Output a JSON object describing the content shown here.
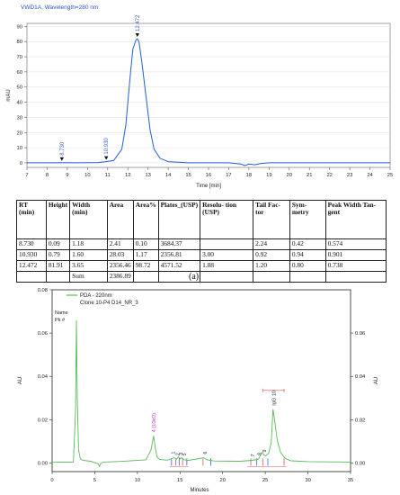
{
  "panel_a": {
    "title": "VWD1A, Wavelength=280 nm",
    "caption": "(a)",
    "table": {
      "headers": [
        "RT (min)",
        "Height",
        "Width (min)",
        "Area",
        "Area%",
        "Plates_(USP)",
        "Resolu- tion (USP)",
        "Tail Fac- tor",
        "Sym- metry",
        "Peak Width Tan- gent"
      ],
      "rows": [
        [
          "8.730",
          "0.09",
          "1.18",
          "2.41",
          "0.10",
          "3684.37",
          "",
          "2.24",
          "0.42",
          "0.574"
        ],
        [
          "10.930",
          "0.79",
          "1.60",
          "28.03",
          "1.17",
          "2356.81",
          "3.00",
          "0.92",
          "0.94",
          "0.901"
        ],
        [
          "12.472",
          "81.91",
          "3.65",
          "2356.46",
          "98.72",
          "4571.52",
          "1.88",
          "1.20",
          "0.80",
          "0.738"
        ],
        [
          "",
          "",
          "Sum",
          "2386.89",
          "",
          "",
          "",
          "",
          "",
          ""
        ]
      ]
    }
  },
  "panel_b": {
    "legend_series": "PDA - 220nm",
    "legend_sample": "Clone 10-P4 D14_NR_3",
    "name_label": "Name",
    "pk_label": "Pk #"
  },
  "chart_data": [
    {
      "type": "line",
      "title": "VWD1A, Wavelength=280 nm",
      "xlabel": "Time [min]",
      "ylabel": "mAU",
      "xlim": [
        7,
        25
      ],
      "ylim": [
        -3,
        92
      ],
      "xticks": [
        7,
        8,
        9,
        10,
        11,
        12,
        13,
        14,
        15,
        16,
        17,
        18,
        19,
        20,
        21,
        22,
        23,
        24,
        25
      ],
      "yticks": [
        0,
        10,
        20,
        30,
        40,
        50,
        60,
        70,
        80,
        90
      ],
      "series": [
        {
          "x": [
            7.0,
            8.0,
            8.73,
            9.5,
            10.5,
            10.93,
            11.3,
            11.7,
            11.9,
            12.1,
            12.25,
            12.4,
            12.47,
            12.55,
            12.7,
            12.9,
            13.1,
            13.3,
            13.6,
            14.0,
            15.0,
            17.0,
            17.6,
            17.8,
            18.0,
            18.3,
            18.6,
            19.0,
            21.0,
            25.0
          ],
          "y": [
            0,
            0,
            0.1,
            0,
            0.2,
            0.8,
            1.6,
            9,
            25,
            55,
            75,
            81,
            81.9,
            80,
            66,
            44,
            22,
            9,
            3,
            0.8,
            0,
            0,
            -0.8,
            -1.8,
            -0.8,
            -1.3,
            -0.4,
            0,
            0,
            0
          ]
        }
      ],
      "peak_labels": [
        {
          "x": 8.73,
          "label": "8.730"
        },
        {
          "x": 10.93,
          "label": "10.930"
        },
        {
          "x": 12.472,
          "label": "12.472"
        }
      ]
    },
    {
      "type": "line",
      "xlabel": "Minutes",
      "ylabel": "AU",
      "y2label": "AU",
      "xlim": [
        0,
        35
      ],
      "ylim": [
        -0.004,
        0.08
      ],
      "xticks": [
        0,
        5,
        10,
        15,
        20,
        25,
        30,
        35
      ],
      "yticks": [
        0.0,
        0.02,
        0.04,
        0.06,
        0.08
      ],
      "y2ticks": [
        0.0,
        0.02,
        0.04,
        0.06
      ],
      "series": [
        {
          "name": "PDA - 220nm",
          "x": [
            0,
            1.5,
            2.5,
            2.75,
            2.85,
            2.95,
            3.1,
            3.3,
            3.6,
            4.5,
            5.4,
            5.55,
            5.7,
            6.0,
            8,
            11.0,
            11.6,
            11.9,
            12.1,
            12.3,
            12.6,
            13.5,
            14.3,
            14.6,
            14.8,
            15.0,
            15.2,
            15.4,
            15.6,
            16,
            17.8,
            18.2,
            19,
            22,
            23.5,
            24.2,
            24.6,
            25.0,
            25.4,
            25.7,
            25.9,
            26.1,
            26.4,
            26.8,
            27.3,
            28,
            30,
            35
          ],
          "y": [
            0.0003,
            0.0004,
            0.0004,
            0.025,
            0.066,
            0.03,
            0.006,
            0.002,
            0.0012,
            0.0008,
            -0.0004,
            -0.0016,
            -0.0004,
            0.0004,
            0.0007,
            0.0014,
            0.006,
            0.0125,
            0.007,
            0.0028,
            0.0016,
            0.0013,
            0.0024,
            0.0017,
            0.0028,
            0.0019,
            0.0024,
            0.0016,
            0.0014,
            0.0012,
            0.0024,
            0.0014,
            0.0009,
            0.0008,
            0.0012,
            0.0018,
            0.0048,
            0.0032,
            0.0045,
            0.0095,
            0.0248,
            0.0195,
            0.0105,
            0.0048,
            0.0022,
            0.001,
            0.0006,
            0.0004
          ]
        }
      ],
      "peak_labels": [
        {
          "x": 11.9,
          "label": "4 (10kD)"
        },
        {
          "x": 14.2,
          "label": "1"
        },
        {
          "x": 14.7,
          "label": "2"
        },
        {
          "x": 15.1,
          "label": "3"
        },
        {
          "x": 15.5,
          "label": "5"
        },
        {
          "x": 17.9,
          "label": "6"
        },
        {
          "x": 23.5,
          "label": "7"
        },
        {
          "x": 24.3,
          "label": "8"
        },
        {
          "x": 24.9,
          "label": "9"
        },
        {
          "x": 26.0,
          "label": "IgG 10"
        }
      ],
      "integration_marks": [
        14.0,
        14.5,
        14.9,
        15.3,
        15.8,
        17.7,
        18.6,
        23.3,
        24.0,
        24.7,
        25.3,
        27.2
      ]
    }
  ]
}
